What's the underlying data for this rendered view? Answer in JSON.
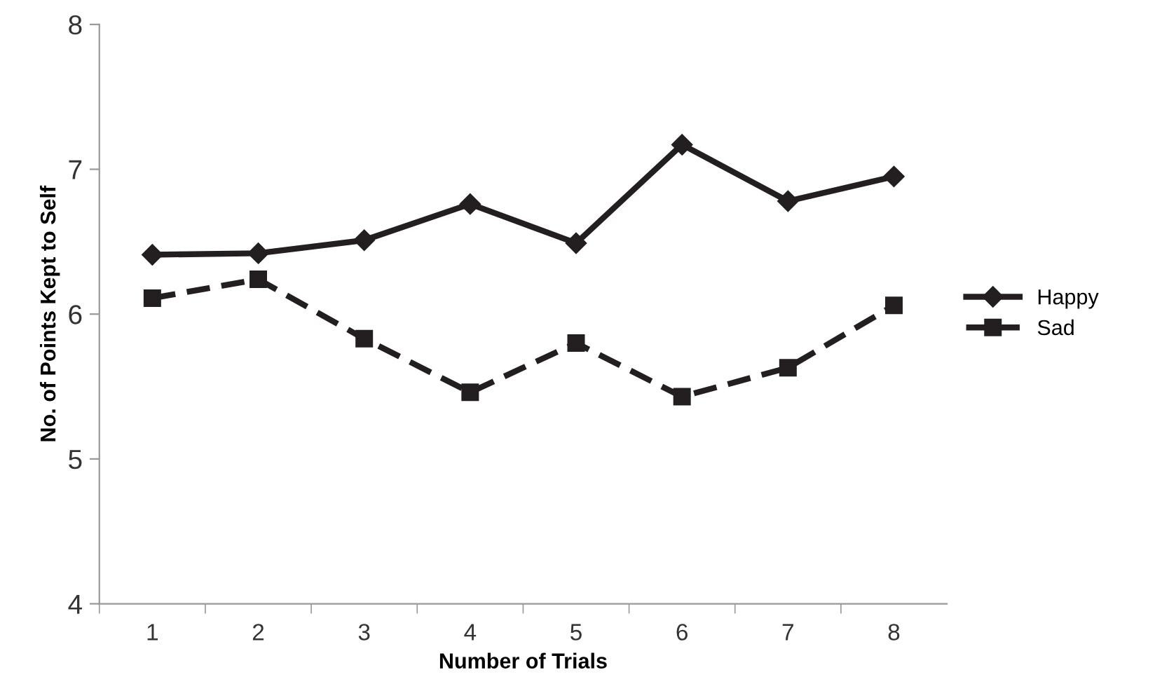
{
  "chart_data": {
    "type": "line",
    "xlabel": "Number of Trials",
    "ylabel": "No. of Points Kept to Self",
    "categories": [
      "1",
      "2",
      "3",
      "4",
      "5",
      "6",
      "7",
      "8"
    ],
    "series": [
      {
        "name": "Happy",
        "color": "#231f20",
        "values": [
          6.41,
          6.42,
          6.51,
          6.76,
          6.49,
          7.17,
          6.78,
          6.95
        ],
        "marker": "diamond",
        "line_style": "solid"
      },
      {
        "name": "Sad",
        "color": "#231f20",
        "values": [
          6.11,
          6.24,
          5.83,
          5.46,
          5.8,
          5.43,
          5.63,
          6.06
        ],
        "marker": "square",
        "line_style": "dashed"
      }
    ],
    "ylim": [
      4,
      8
    ],
    "yticks": [
      4,
      5,
      6,
      7,
      8
    ],
    "grid": false,
    "legend": "right"
  }
}
